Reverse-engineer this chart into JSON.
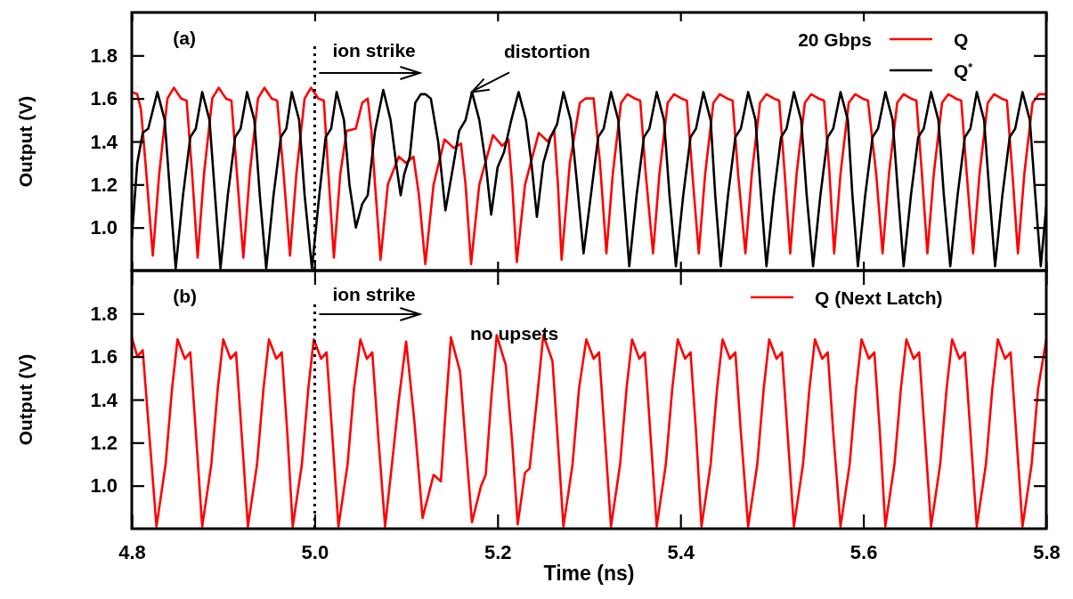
{
  "chart_data": [
    {
      "type": "line",
      "ylabel": "Output (V)",
      "legend_title": "20 Gbps",
      "legend": "top right",
      "tick_labels": "y",
      "xlim": [
        4.8,
        5.8
      ],
      "xticks": [
        {
          "value": 4.8,
          "label": null
        },
        {
          "value": 5.0,
          "label": null
        },
        {
          "value": 5.2,
          "label": null
        },
        {
          "value": 5.4,
          "label": null
        },
        {
          "value": 5.6,
          "label": null
        },
        {
          "value": 5.8,
          "label": null
        }
      ],
      "ylim": [
        0.8,
        2.0
      ],
      "yticks": [
        {
          "value": 1.0,
          "label": "1.0"
        },
        {
          "value": 1.2,
          "label": "1.2"
        },
        {
          "value": 1.4,
          "label": "1.4"
        },
        {
          "value": 1.6,
          "label": "1.6"
        },
        {
          "value": 1.8,
          "label": "1.8"
        }
      ],
      "ref_lines": [
        {
          "axis": "x",
          "value": 5.0,
          "line_style": "dotted",
          "color": "#000000"
        }
      ],
      "annotations": [
        "(a)",
        "ion strike",
        {
          "text": "distortion",
          "x": 5.172,
          "y": 1.63
        }
      ],
      "series": [
        {
          "name": "Q",
          "color": "#ff0000",
          "x": [
            4.8,
            4.806,
            4.81,
            4.815,
            4.823,
            4.83,
            4.839,
            4.846,
            4.854,
            4.86,
            4.866,
            4.872,
            4.879,
            4.888,
            4.895,
            4.903,
            4.909,
            4.915,
            4.922,
            4.929,
            4.938,
            4.945,
            4.953,
            4.959,
            4.966,
            4.973,
            4.98,
            4.989,
            4.996,
            5.004,
            5.01,
            5.015,
            5.021,
            5.028,
            5.035,
            5.045,
            5.052,
            5.058,
            5.062,
            5.066,
            5.072,
            5.08,
            5.092,
            5.1,
            5.108,
            5.114,
            5.121,
            5.13,
            5.142,
            5.152,
            5.16,
            5.165,
            5.171,
            5.18,
            5.195,
            5.205,
            5.212,
            5.216,
            5.221,
            5.23,
            5.245,
            5.255,
            5.262,
            5.266,
            5.27,
            5.279,
            5.29,
            5.296,
            5.305,
            5.312,
            5.319,
            5.326,
            5.335,
            5.342,
            5.35,
            5.356,
            5.362,
            5.37,
            5.377,
            5.386,
            5.393,
            5.401,
            5.407,
            5.413,
            5.42,
            5.427,
            5.436,
            5.443,
            5.451,
            5.457,
            5.463,
            5.471,
            5.478,
            5.487,
            5.494,
            5.502,
            5.508,
            5.514,
            5.52,
            5.527,
            5.536,
            5.543,
            5.551,
            5.557,
            5.563,
            5.568,
            5.575,
            5.584,
            5.591,
            5.599,
            5.605,
            5.614,
            5.621,
            5.628,
            5.637,
            5.644,
            5.652,
            5.658,
            5.664,
            5.67,
            5.677,
            5.686,
            5.693,
            5.701,
            5.707,
            5.713,
            5.72,
            5.727,
            5.736,
            5.743,
            5.751,
            5.757,
            5.763,
            5.769,
            5.776,
            5.785,
            5.792,
            5.8
          ],
          "values": [
            1.63,
            1.62,
            1.55,
            1.3,
            0.87,
            1.25,
            1.6,
            1.65,
            1.6,
            1.59,
            1.25,
            0.86,
            1.25,
            1.6,
            1.65,
            1.6,
            1.59,
            1.25,
            0.86,
            1.25,
            1.6,
            1.65,
            1.6,
            1.59,
            1.25,
            0.87,
            1.25,
            1.6,
            1.65,
            1.6,
            1.59,
            1.25,
            0.86,
            1.25,
            1.45,
            1.46,
            1.58,
            1.6,
            1.45,
            1.2,
            0.85,
            1.2,
            1.33,
            1.3,
            1.33,
            1.15,
            0.83,
            1.2,
            1.41,
            1.37,
            1.39,
            1.2,
            0.83,
            1.2,
            1.43,
            1.38,
            1.41,
            1.2,
            0.84,
            1.2,
            1.44,
            1.4,
            1.45,
            1.2,
            0.85,
            1.3,
            1.58,
            1.6,
            1.6,
            1.3,
            0.88,
            1.25,
            1.58,
            1.62,
            1.6,
            1.59,
            1.25,
            0.88,
            1.25,
            1.58,
            1.62,
            1.6,
            1.59,
            1.25,
            0.88,
            1.25,
            1.58,
            1.62,
            1.6,
            1.59,
            1.25,
            0.88,
            1.25,
            1.58,
            1.62,
            1.6,
            1.59,
            1.25,
            0.88,
            1.25,
            1.58,
            1.62,
            1.6,
            1.59,
            1.25,
            0.88,
            1.25,
            1.58,
            1.62,
            1.6,
            1.59,
            1.25,
            0.88,
            1.25,
            1.58,
            1.62,
            1.6,
            1.59,
            1.25,
            0.88,
            1.25,
            1.58,
            1.62,
            1.6,
            1.59,
            1.25,
            0.88,
            1.25,
            1.58,
            1.62,
            1.6,
            1.59,
            1.25,
            0.88,
            1.25,
            1.58,
            1.62,
            1.62
          ]
        },
        {
          "name": "Q$^{*}$",
          "color": "#000000",
          "x": [
            4.8,
            4.806,
            4.812,
            4.818,
            4.828,
            4.836,
            4.842,
            4.848,
            4.856,
            4.864,
            4.87,
            4.877,
            4.885,
            4.891,
            4.897,
            4.905,
            4.913,
            4.919,
            4.926,
            4.934,
            4.94,
            4.947,
            4.955,
            4.963,
            4.969,
            4.975,
            4.983,
            4.989,
            4.997,
            5.005,
            5.012,
            5.018,
            5.024,
            5.032,
            5.038,
            5.045,
            5.052,
            5.058,
            5.066,
            5.075,
            5.083,
            5.089,
            5.094,
            5.098,
            5.104,
            5.11,
            5.116,
            5.121,
            5.127,
            5.135,
            5.143,
            5.15,
            5.158,
            5.165,
            5.172,
            5.18,
            5.187,
            5.193,
            5.2,
            5.207,
            5.215,
            5.223,
            5.231,
            5.237,
            5.243,
            5.25,
            5.258,
            5.265,
            5.272,
            5.28,
            5.287,
            5.294,
            5.302,
            5.31,
            5.316,
            5.324,
            5.332,
            5.338,
            5.344,
            5.352,
            5.36,
            5.366,
            5.374,
            5.382,
            5.388,
            5.395,
            5.403,
            5.411,
            5.417,
            5.425,
            5.433,
            5.438,
            5.444,
            5.452,
            5.46,
            5.466,
            5.474,
            5.482,
            5.488,
            5.494,
            5.502,
            5.51,
            5.516,
            5.524,
            5.532,
            5.538,
            5.545,
            5.553,
            5.561,
            5.567,
            5.575,
            5.583,
            5.588,
            5.594,
            5.602,
            5.61,
            5.616,
            5.624,
            5.632,
            5.638,
            5.644,
            5.652,
            5.66,
            5.666,
            5.674,
            5.682,
            5.688,
            5.695,
            5.703,
            5.711,
            5.717,
            5.724,
            5.732,
            5.738,
            5.744,
            5.752,
            5.76,
            5.766,
            5.774,
            5.782,
            5.788,
            5.794,
            5.8
          ],
          "values": [
            0.95,
            1.3,
            1.44,
            1.46,
            1.63,
            1.5,
            1.15,
            0.81,
            1.15,
            1.42,
            1.46,
            1.63,
            1.5,
            1.15,
            0.81,
            1.15,
            1.42,
            1.46,
            1.63,
            1.5,
            1.15,
            0.81,
            1.15,
            1.42,
            1.46,
            1.63,
            1.5,
            1.15,
            0.81,
            1.15,
            1.42,
            1.46,
            1.63,
            1.5,
            1.2,
            1.0,
            1.11,
            1.15,
            1.45,
            1.64,
            1.5,
            1.3,
            1.15,
            1.25,
            1.33,
            1.58,
            1.62,
            1.62,
            1.6,
            1.4,
            1.08,
            1.25,
            1.45,
            1.5,
            1.63,
            1.5,
            1.3,
            1.06,
            1.28,
            1.35,
            1.5,
            1.63,
            1.5,
            1.3,
            1.05,
            1.3,
            1.42,
            1.48,
            1.63,
            1.5,
            1.2,
            0.88,
            1.15,
            1.42,
            1.46,
            1.63,
            1.5,
            1.15,
            0.82,
            1.15,
            1.42,
            1.46,
            1.63,
            1.5,
            1.15,
            0.82,
            1.15,
            1.42,
            1.46,
            1.63,
            1.5,
            1.15,
            0.82,
            1.15,
            1.42,
            1.46,
            1.63,
            1.5,
            1.15,
            0.82,
            1.15,
            1.42,
            1.46,
            1.63,
            1.5,
            1.15,
            0.82,
            1.15,
            1.42,
            1.46,
            1.63,
            1.5,
            1.15,
            0.82,
            1.15,
            1.42,
            1.46,
            1.63,
            1.5,
            1.15,
            0.82,
            1.15,
            1.42,
            1.46,
            1.63,
            1.5,
            1.15,
            0.82,
            1.15,
            1.42,
            1.46,
            1.63,
            1.5,
            1.15,
            0.82,
            1.15,
            1.42,
            1.46,
            1.63,
            1.5,
            1.15,
            0.82,
            1.1
          ]
        }
      ]
    },
    {
      "type": "line",
      "xlabel": "Time (ns)",
      "ylabel": "Output (V)",
      "legend": "top right",
      "xlim": [
        4.8,
        5.8
      ],
      "xticks": [
        {
          "value": 4.8,
          "label": "4.8"
        },
        {
          "value": 5.0,
          "label": "5.0"
        },
        {
          "value": 5.2,
          "label": "5.2"
        },
        {
          "value": 5.4,
          "label": "5.4"
        },
        {
          "value": 5.6,
          "label": "5.6"
        },
        {
          "value": 5.8,
          "label": "5.8"
        }
      ],
      "ylim": [
        0.8,
        2.0
      ],
      "yticks": [
        {
          "value": 1.0,
          "label": "1.0"
        },
        {
          "value": 1.2,
          "label": "1.2"
        },
        {
          "value": 1.4,
          "label": "1.4"
        },
        {
          "value": 1.6,
          "label": "1.6"
        },
        {
          "value": 1.8,
          "label": "1.8"
        }
      ],
      "ref_lines": [
        {
          "axis": "x",
          "value": 5.0,
          "line_style": "dotted",
          "color": "#000000"
        }
      ],
      "annotations": [
        "(b)",
        "ion strike",
        "no upsets"
      ],
      "series": [
        {
          "name": "Q (Next Latch)",
          "color": "#ff0000",
          "x": [
            4.8,
            4.806,
            4.812,
            4.818,
            4.827,
            4.837,
            4.844,
            4.85,
            4.858,
            4.864,
            4.87,
            4.877,
            4.887,
            4.894,
            4.9,
            4.908,
            4.914,
            4.92,
            4.927,
            4.937,
            4.944,
            4.95,
            4.958,
            4.964,
            4.97,
            4.976,
            4.986,
            4.993,
            4.999,
            5.007,
            5.013,
            5.019,
            5.026,
            5.036,
            5.043,
            5.05,
            5.057,
            5.063,
            5.07,
            5.077,
            5.084,
            5.092,
            5.1,
            5.109,
            5.118,
            5.13,
            5.138,
            5.144,
            5.149,
            5.159,
            5.165,
            5.172,
            5.182,
            5.187,
            5.193,
            5.199,
            5.209,
            5.216,
            5.222,
            5.23,
            5.235,
            5.243,
            5.25,
            5.26,
            5.266,
            5.272,
            5.282,
            5.289,
            5.297,
            5.305,
            5.311,
            5.317,
            5.324,
            5.334,
            5.341,
            5.347,
            5.355,
            5.361,
            5.367,
            5.374,
            5.384,
            5.391,
            5.397,
            5.405,
            5.411,
            5.417,
            5.423,
            5.433,
            5.44,
            5.446,
            5.454,
            5.46,
            5.466,
            5.474,
            5.484,
            5.491,
            5.497,
            5.505,
            5.511,
            5.517,
            5.524,
            5.534,
            5.541,
            5.547,
            5.555,
            5.561,
            5.567,
            5.575,
            5.585,
            5.592,
            5.598,
            5.606,
            5.612,
            5.618,
            5.624,
            5.634,
            5.641,
            5.647,
            5.655,
            5.661,
            5.667,
            5.674,
            5.684,
            5.691,
            5.697,
            5.705,
            5.711,
            5.717,
            5.724,
            5.734,
            5.741,
            5.747,
            5.755,
            5.761,
            5.767,
            5.774,
            5.784,
            5.791,
            5.8
          ],
          "values": [
            1.69,
            1.6,
            1.63,
            1.3,
            0.81,
            1.1,
            1.45,
            1.68,
            1.59,
            1.62,
            1.25,
            0.81,
            1.1,
            1.45,
            1.68,
            1.59,
            1.62,
            1.25,
            0.81,
            1.1,
            1.45,
            1.68,
            1.59,
            1.62,
            1.25,
            0.81,
            1.1,
            1.45,
            1.68,
            1.59,
            1.62,
            1.25,
            0.81,
            1.1,
            1.45,
            1.68,
            1.59,
            1.62,
            1.2,
            0.81,
            1.08,
            1.4,
            1.67,
            1.3,
            0.85,
            1.05,
            1.02,
            1.4,
            1.69,
            1.53,
            1.2,
            0.83,
            1.0,
            1.05,
            1.4,
            1.7,
            1.56,
            1.2,
            0.82,
            1.06,
            1.08,
            1.4,
            1.7,
            1.58,
            1.2,
            0.81,
            1.1,
            1.45,
            1.68,
            1.59,
            1.62,
            1.25,
            0.81,
            1.1,
            1.45,
            1.68,
            1.59,
            1.62,
            1.25,
            0.81,
            1.1,
            1.45,
            1.68,
            1.59,
            1.62,
            1.25,
            0.81,
            1.1,
            1.45,
            1.68,
            1.59,
            1.62,
            1.25,
            0.81,
            1.1,
            1.45,
            1.68,
            1.59,
            1.62,
            1.25,
            0.81,
            1.1,
            1.45,
            1.68,
            1.59,
            1.62,
            1.25,
            0.81,
            1.1,
            1.45,
            1.68,
            1.59,
            1.62,
            1.25,
            0.81,
            1.1,
            1.45,
            1.68,
            1.59,
            1.62,
            1.25,
            0.81,
            1.1,
            1.45,
            1.68,
            1.59,
            1.62,
            1.25,
            0.81,
            1.1,
            1.45,
            1.68,
            1.59,
            1.62,
            1.25,
            0.81,
            1.1,
            1.45,
            1.68
          ]
        }
      ]
    }
  ]
}
